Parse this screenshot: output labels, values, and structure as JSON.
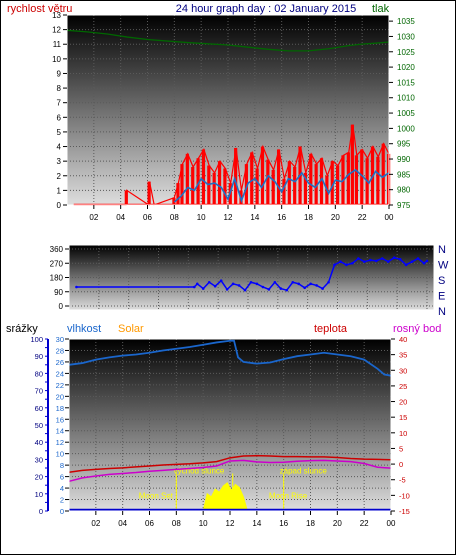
{
  "colors": {
    "wind": "#ff0000",
    "gust_line": "#1f6fc4",
    "pressure": "#006600",
    "direction": "#0000ff",
    "humidity": "#1a66cc",
    "solar": "#ffff00",
    "temperature": "#cc0000",
    "dewpoint": "#cc00cc",
    "rain": "#0000cc",
    "title": "#000080",
    "axis_tick": "#000000"
  },
  "chart_data": [
    {
      "type": "area",
      "title": "24 hour graph day : 02 January 2015",
      "left_axis_label": "rychlost větru",
      "right_axis_label": "tlak",
      "x_ticks": [
        "02",
        "04",
        "06",
        "08",
        "10",
        "12",
        "14",
        "16",
        "18",
        "20",
        "22",
        "00"
      ],
      "left_ticks": [
        0,
        1,
        2,
        3,
        4,
        5,
        6,
        7,
        8,
        9,
        10,
        11,
        12,
        13
      ],
      "right_ticks": [
        975,
        980,
        985,
        990,
        995,
        1000,
        1005,
        1010,
        1015,
        1020,
        1025,
        1030,
        1035
      ],
      "ylim_left": [
        0,
        13
      ],
      "ylim_right": [
        975,
        1037
      ],
      "xlim_hours": [
        0,
        24
      ],
      "series": [
        {
          "name": "rychlost větru",
          "x": [
            0.5,
            4.4,
            4.45,
            6.1,
            6.15,
            6.5,
            8.0,
            8.3,
            8.6,
            9.0,
            9.4,
            9.8,
            10.2,
            10.6,
            11.0,
            11.4,
            11.8,
            12.2,
            12.6,
            13.0,
            13.4,
            13.8,
            14.2,
            14.6,
            15.0,
            15.4,
            15.8,
            16.2,
            16.6,
            17.0,
            17.4,
            17.8,
            18.2,
            18.6,
            19.0,
            19.4,
            19.8,
            20.2,
            20.6,
            21.0,
            21.3,
            21.6,
            22.0,
            22.4,
            22.8,
            23.2,
            23.6,
            24.0
          ],
          "y": [
            0,
            0,
            1.0,
            0,
            1.6,
            0,
            0.5,
            1.5,
            2.8,
            3.5,
            2.6,
            3.2,
            3.8,
            2.7,
            2.2,
            3.0,
            2.5,
            1.5,
            3.9,
            1.0,
            2.8,
            3.6,
            2.5,
            4.0,
            3.1,
            2.4,
            3.8,
            1.8,
            3.0,
            2.6,
            4.0,
            2.2,
            3.5,
            2.8,
            3.2,
            2.0,
            3.0,
            2.7,
            3.4,
            3.6,
            5.5,
            3.4,
            3.8,
            3.2,
            4.0,
            3.3,
            4.2,
            3.5
          ]
        },
        {
          "name": "",
          "x": [
            8.0,
            8.5,
            9.0,
            9.5,
            10.0,
            10.5,
            11.0,
            11.5,
            12.0,
            12.5,
            13.0,
            13.5,
            14.0,
            14.5,
            15.0,
            15.5,
            16.0,
            16.5,
            17.0,
            17.5,
            18.0,
            18.5,
            19.0,
            19.5,
            20.0,
            20.5,
            21.0,
            21.5,
            22.0,
            22.5,
            23.0,
            23.5,
            24.0
          ],
          "y": [
            0.2,
            0.6,
            1.2,
            1.0,
            1.8,
            1.4,
            1.5,
            1.2,
            0.4,
            1.8,
            0.3,
            1.5,
            1.8,
            1.2,
            2.0,
            1.6,
            0.9,
            1.8,
            1.6,
            2.2,
            1.5,
            1.2,
            1.8,
            0.8,
            1.7,
            1.6,
            2.1,
            2.4,
            2.0,
            1.5,
            2.3,
            1.9,
            2.2
          ]
        },
        {
          "name": "tlak",
          "x": [
            0,
            1.5,
            3.0,
            4.5,
            6.0,
            7.5,
            9.0,
            10.5,
            12.0,
            13.5,
            15.0,
            16.5,
            18.0,
            19.5,
            21.0,
            22.0,
            23.0,
            24.0
          ],
          "y": [
            1032,
            1031.5,
            1030.8,
            1029.8,
            1029.0,
            1028.5,
            1028.0,
            1027.6,
            1027.2,
            1026.5,
            1025.8,
            1025.3,
            1025.3,
            1026.0,
            1027.0,
            1027.5,
            1027.8,
            1028.2
          ]
        }
      ]
    },
    {
      "type": "scatter",
      "left_ticks": [
        0,
        90,
        180,
        270,
        360
      ],
      "right_ticks": [
        "N",
        "W",
        "S",
        "E",
        "N"
      ],
      "ylim": [
        0,
        360
      ],
      "xlim_hours": [
        0,
        24
      ],
      "series": [
        {
          "name": "",
          "x": [
            0.5,
            8.4,
            8.6,
            9.0,
            9.4,
            9.8,
            10.2,
            10.6,
            11.0,
            11.4,
            11.8,
            12.2,
            12.6,
            13.0,
            13.4,
            13.8,
            14.2,
            14.6,
            15.0,
            15.4,
            15.8,
            16.2,
            16.6,
            17.0,
            17.4,
            17.8,
            18.2,
            18.6,
            19.0,
            19.4,
            19.8,
            20.2,
            20.6,
            21.0,
            21.4,
            21.8,
            22.2,
            22.6,
            23.0,
            23.4,
            23.8,
            24.0
          ],
          "y": [
            120,
            120,
            140,
            110,
            150,
            125,
            160,
            105,
            140,
            130,
            100,
            150,
            140,
            120,
            105,
            150,
            110,
            100,
            150,
            140,
            115,
            140,
            130,
            110,
            150,
            260,
            280,
            260,
            270,
            300,
            280,
            290,
            285,
            300,
            280,
            305,
            295,
            260,
            280,
            300,
            270,
            285
          ]
        }
      ]
    },
    {
      "type": "line",
      "labels": {
        "rain": "srážky",
        "humidity": "vlhkost",
        "solar": "Solar",
        "temperature": "teplota",
        "dewpoint": "rosný bod"
      },
      "x_ticks": [
        "02",
        "04",
        "06",
        "08",
        "10",
        "12",
        "14",
        "16",
        "18",
        "20",
        "22",
        "00"
      ],
      "rain_ticks": [
        0,
        10,
        20,
        30,
        40,
        50,
        60,
        70,
        80,
        90,
        100
      ],
      "humidity_ticks": [
        0,
        2,
        4,
        6,
        8,
        10,
        12,
        14,
        16,
        18,
        20,
        22,
        24,
        26,
        28,
        30
      ],
      "temp_ticks": [
        -15,
        -10,
        -5,
        0,
        5,
        10,
        15,
        20,
        25,
        30,
        35,
        40
      ],
      "ylim_humidity": [
        0,
        30
      ],
      "ylim_temp": [
        -15,
        40
      ],
      "xlim_hours": [
        0,
        24
      ],
      "annotations": [
        {
          "text": "východ slunce",
          "x": 7.8,
          "y_temp": -3
        },
        {
          "text": "západ slunce",
          "x": 15.7,
          "y_temp": -3
        },
        {
          "text": "Moon Set",
          "x": 5.2,
          "y_temp": -11
        },
        {
          "text": "Moon Rise",
          "x": 14.9,
          "y_temp": -11
        }
      ],
      "markers_hours": [
        8.0,
        12.2,
        16.0
      ],
      "series": [
        {
          "name": "vlhkost",
          "x": [
            0,
            1,
            2,
            3,
            4,
            5,
            6,
            7,
            8,
            9,
            10,
            11,
            12,
            12.3,
            12.6,
            13,
            14,
            15,
            16,
            17,
            18,
            19,
            20,
            21,
            22,
            23,
            23.5,
            24
          ],
          "y": [
            25.5,
            25.8,
            26.4,
            26.8,
            27.1,
            27.3,
            27.6,
            28.0,
            28.3,
            28.6,
            29.0,
            29.4,
            29.7,
            29.7,
            26.8,
            26.0,
            25.7,
            25.9,
            26.5,
            27.0,
            27.3,
            27.6,
            27.3,
            27.0,
            26.4,
            24.8,
            23.8,
            23.6
          ]
        },
        {
          "name": "teplota",
          "x": [
            0,
            1,
            2,
            3,
            4,
            5,
            6,
            7,
            8,
            9,
            10,
            11,
            12,
            13,
            14,
            15,
            16,
            17,
            18,
            19,
            20,
            21,
            22,
            23,
            24
          ],
          "y": [
            -2.6,
            -2.0,
            -1.7,
            -1.4,
            -1.2,
            -0.9,
            -0.6,
            -0.3,
            -0.1,
            0.1,
            0.4,
            0.8,
            2.0,
            2.6,
            2.7,
            2.6,
            2.4,
            2.4,
            2.3,
            2.3,
            2.1,
            1.8,
            1.6,
            1.5,
            1.4
          ]
        },
        {
          "name": "rosný bod",
          "x": [
            0,
            1,
            2,
            3,
            4,
            5,
            6,
            7,
            8,
            9,
            10,
            11,
            12,
            13,
            14,
            15,
            16,
            17,
            18,
            19,
            20,
            21,
            22,
            23,
            24
          ],
          "y": [
            -5.5,
            -4.4,
            -3.8,
            -3.3,
            -3.0,
            -2.7,
            -2.3,
            -2.0,
            -1.7,
            -1.4,
            -1.1,
            -0.6,
            1.0,
            1.2,
            0.7,
            0.5,
            0.6,
            0.9,
            1.1,
            1.2,
            1.0,
            0.8,
            0.2,
            -1.0,
            -1.3
          ]
        },
        {
          "name": "Solar",
          "x": [
            10.0,
            10.3,
            10.6,
            10.9,
            11.2,
            11.5,
            11.8,
            12.1,
            12.4,
            12.7,
            13.0,
            13.3
          ],
          "y": [
            -15,
            -9.5,
            -10.5,
            -8.0,
            -9.0,
            -7.0,
            -6.0,
            -8.5,
            -6.5,
            -7.5,
            -10.5,
            -15
          ]
        },
        {
          "name": "srážky",
          "x": [
            0,
            24
          ],
          "y": [
            0,
            0
          ]
        }
      ]
    }
  ]
}
